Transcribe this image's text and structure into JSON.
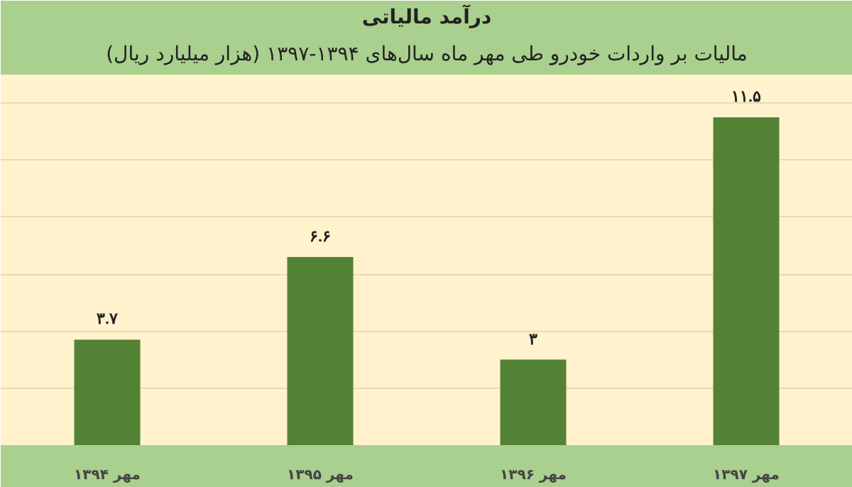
{
  "chart_data": {
    "type": "bar",
    "title": "درآمد مالیاتی",
    "subtitle": "مالیات بر واردات خودرو طی مهر ماه سال‌های ۱۳۹۴-۱۳۹۷ (هزار میلیارد ریال)",
    "categories": [
      "مهر ۱۳۹۴",
      "مهر ۱۳۹۵",
      "مهر ۱۳۹۶",
      "مهر ۱۳۹۷"
    ],
    "values": [
      3.7,
      6.6,
      3,
      11.5
    ],
    "value_labels": [
      "۳.۷",
      "۶.۶",
      "۳",
      "۱۱.۵"
    ],
    "color": "#548235",
    "ylim": [
      0,
      13
    ],
    "yticks": [
      {
        "value": 2,
        "label": null
      },
      {
        "value": 4,
        "label": null
      },
      {
        "value": 6,
        "label": null
      },
      {
        "value": 8,
        "label": null
      },
      {
        "value": 10,
        "label": null
      },
      {
        "value": 12,
        "label": null
      }
    ],
    "tick_labels": "x",
    "grid": "y"
  }
}
